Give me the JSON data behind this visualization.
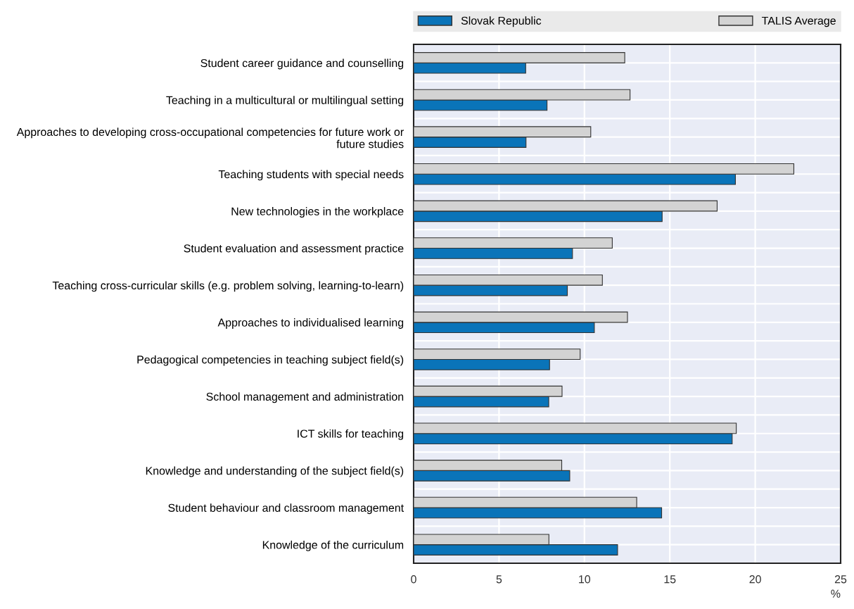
{
  "chart_data": {
    "type": "bar",
    "orientation": "horizontal",
    "xlabel": "%",
    "categories": [
      "Student career guidance and counselling",
      "Teaching in a multicultural or multilingual setting",
      "Approaches to developing cross-occupational competencies for future work or\nfuture studies",
      "Teaching students with special needs",
      "New technologies in the workplace",
      "Student evaluation and assessment practice",
      "Teaching cross-curricular skills (e.g. problem solving, learning-to-learn)",
      "Approaches to individualised learning",
      "Pedagogical competencies in teaching subject field(s)",
      "School management and administration",
      "ICT skills for teaching",
      "Knowledge and understanding of the subject field(s)",
      "Student behaviour and classroom management",
      "Knowledge of the curriculum"
    ],
    "series": [
      {
        "name": "Slovak Republic",
        "color": "#0a74b9",
        "values": [
          6.56,
          7.81,
          6.58,
          18.84,
          14.55,
          9.3,
          9.0,
          10.58,
          7.96,
          7.91,
          18.65,
          9.14,
          14.52,
          11.94
        ]
      },
      {
        "name": "TALIS Average",
        "color": "#d3d3d3",
        "values": [
          12.36,
          12.67,
          10.37,
          22.26,
          17.77,
          11.63,
          11.05,
          12.52,
          9.75,
          8.69,
          18.89,
          8.67,
          13.06,
          7.92
        ]
      }
    ],
    "xlim": [
      0,
      25
    ],
    "xticks": [
      0,
      5,
      10,
      15,
      20,
      25
    ],
    "grid": true,
    "legend": "top"
  }
}
